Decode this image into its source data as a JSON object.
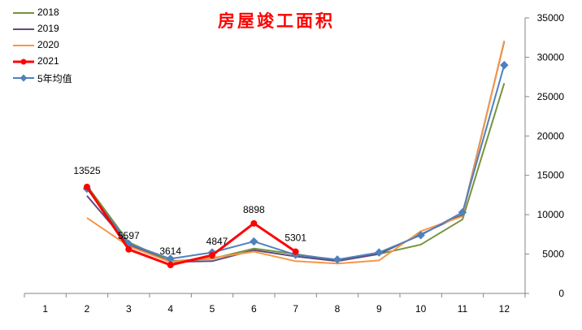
{
  "chart_data": {
    "type": "line",
    "title": "房屋竣工面积",
    "categories": [
      "1",
      "2",
      "3",
      "4",
      "5",
      "6",
      "7",
      "8",
      "9",
      "10",
      "11",
      "12"
    ],
    "ylim": [
      0,
      35000
    ],
    "yticks": [
      "0",
      "5000",
      "10000",
      "15000",
      "20000",
      "25000",
      "30000",
      "35000"
    ],
    "y_axis_position": "right",
    "grid": false,
    "legend_position": "top-left",
    "series": [
      {
        "name": "2018",
        "color": "#77933c",
        "marker": "none",
        "values": [
          null,
          13700,
          6500,
          4100,
          4400,
          5700,
          5000,
          4200,
          5000,
          6200,
          9400,
          26700
        ]
      },
      {
        "name": "2019",
        "color": "#604a7b",
        "marker": "none",
        "values": [
          null,
          12400,
          6200,
          4000,
          4100,
          5500,
          4700,
          4100,
          5000,
          7500,
          10000,
          32000
        ]
      },
      {
        "name": "2020",
        "color": "#f79646",
        "marker": "none",
        "values": [
          null,
          9600,
          6000,
          4000,
          4500,
          5300,
          4100,
          3800,
          4200,
          7900,
          9800,
          32100
        ]
      },
      {
        "name": "2021",
        "color": "#ff0000",
        "marker": "circle",
        "values": [
          null,
          13525,
          5597,
          3614,
          4847,
          8898,
          5301,
          null,
          null,
          null,
          null,
          null
        ],
        "data_labels": [
          "",
          "13525",
          "5597",
          "3614",
          "4847",
          "8898",
          "5301",
          "",
          "",
          "",
          "",
          ""
        ]
      },
      {
        "name": "5年均值",
        "color": "#4f81bd",
        "marker": "diamond",
        "values": [
          null,
          13300,
          6300,
          4400,
          5200,
          6600,
          4900,
          4300,
          5200,
          7400,
          10300,
          29000
        ]
      }
    ]
  }
}
